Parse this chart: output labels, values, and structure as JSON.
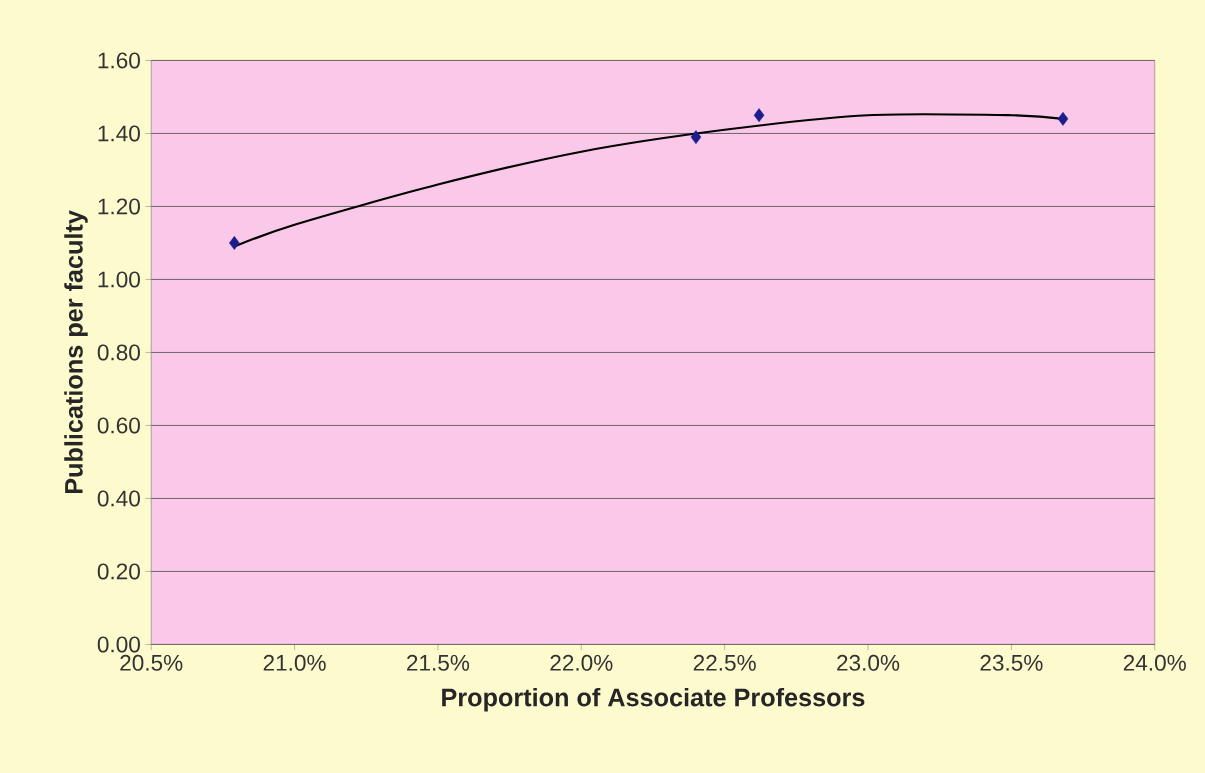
{
  "chart_data": {
    "type": "scatter",
    "xlabel": "Proportion of Associate Professors",
    "ylabel": "Publications per faculty",
    "xlim": [
      20.5,
      24.0
    ],
    "ylim": [
      0,
      1.6
    ],
    "xticks": [
      {
        "value": 20.5,
        "label": "20.5%"
      },
      {
        "value": 21.0,
        "label": "21.0%"
      },
      {
        "value": 21.5,
        "label": "21.5%"
      },
      {
        "value": 22.0,
        "label": "22.0%"
      },
      {
        "value": 22.5,
        "label": "22.5%"
      },
      {
        "value": 23.0,
        "label": "23.0%"
      },
      {
        "value": 23.5,
        "label": "23.5%"
      },
      {
        "value": 24.0,
        "label": "24.0%"
      }
    ],
    "yticks": [
      {
        "value": 0,
        "label": "0.00"
      },
      {
        "value": 0.2,
        "label": "0.20"
      },
      {
        "value": 0.4,
        "label": "0.40"
      },
      {
        "value": 0.6,
        "label": "0.60"
      },
      {
        "value": 0.8,
        "label": "0.80"
      },
      {
        "value": 1.0,
        "label": "1.00"
      },
      {
        "value": 1.2,
        "label": "1.20"
      },
      {
        "value": 1.4,
        "label": "1.40"
      },
      {
        "value": 1.6,
        "label": "1.60"
      }
    ],
    "grid": "y",
    "marker": "diamond",
    "series": [
      {
        "color": "#1c1c8c",
        "x": [
          20.79,
          22.4,
          22.62,
          23.68
        ],
        "values": [
          1.1,
          1.39,
          1.45,
          1.44
        ]
      },
      {
        "type": "line",
        "color": "#000000",
        "marker": "none",
        "line_style": "solid",
        "x": [
          20.79,
          21.0,
          21.5,
          22.0,
          22.5,
          23.0,
          23.5,
          23.68
        ],
        "values": [
          1.09,
          1.15,
          1.26,
          1.35,
          1.41,
          1.45,
          1.45,
          1.44
        ]
      }
    ]
  }
}
